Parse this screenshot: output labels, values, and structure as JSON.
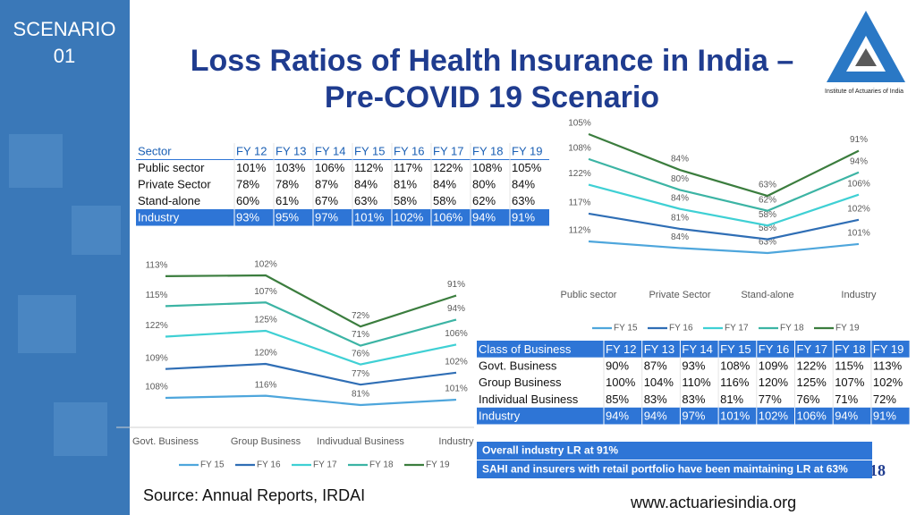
{
  "sidebar": {
    "line1": "SCENARIO",
    "line2": "01"
  },
  "header": {
    "title_line1": "Loss Ratios of Health Insurance in India –",
    "title_line2": "Pre-COVID 19 Scenario",
    "logo_text": "Institute of Actuaries of India"
  },
  "table1": {
    "header": [
      "Sector",
      "FY 12",
      "FY 13",
      "FY 14",
      "FY 15",
      "FY 16",
      "FY 17",
      "FY 18",
      "FY 19"
    ],
    "rows": [
      [
        "Public sector",
        "101%",
        "103%",
        "106%",
        "112%",
        "117%",
        "122%",
        "108%",
        "105%"
      ],
      [
        "Private Sector",
        "78%",
        "78%",
        "87%",
        "84%",
        "81%",
        "84%",
        "80%",
        "84%"
      ],
      [
        "Stand-alone",
        "60%",
        "61%",
        "67%",
        "63%",
        "58%",
        "58%",
        "62%",
        "63%"
      ],
      [
        "Industry",
        "93%",
        "95%",
        "97%",
        "101%",
        "102%",
        "106%",
        "94%",
        "91%"
      ]
    ]
  },
  "table2": {
    "header": [
      "Class of Business",
      "FY 12",
      "FY 13",
      "FY 14",
      "FY 15",
      "FY 16",
      "FY 17",
      "FY 18",
      "FY 19"
    ],
    "rows": [
      [
        "Govt. Business",
        "90%",
        "87%",
        "93%",
        "108%",
        "109%",
        "122%",
        "115%",
        "113%"
      ],
      [
        "Group Business",
        "100%",
        "104%",
        "110%",
        "116%",
        "120%",
        "125%",
        "107%",
        "102%"
      ],
      [
        "Individual Business",
        "85%",
        "83%",
        "83%",
        "81%",
        "77%",
        "76%",
        "71%",
        "72%"
      ],
      [
        "Industry",
        "94%",
        "94%",
        "97%",
        "101%",
        "102%",
        "106%",
        "94%",
        "91%"
      ]
    ]
  },
  "chart_data": [
    {
      "type": "line",
      "stacked": true,
      "categories": [
        "Public sector",
        "Private Sector",
        "Stand-alone",
        "Industry"
      ],
      "series": [
        {
          "name": "FY 15",
          "color": "#4ea6dc",
          "values": [
            112,
            84,
            63,
            101
          ],
          "value_labels": [
            "112%",
            "84%",
            "63%",
            "101%"
          ]
        },
        {
          "name": "FY 16",
          "color": "#2f6eb5",
          "values": [
            117,
            81,
            58,
            102
          ],
          "value_labels": [
            "117%",
            "81%",
            "58%",
            "102%"
          ]
        },
        {
          "name": "FY 17",
          "color": "#3fd0d4",
          "values": [
            122,
            84,
            58,
            106
          ],
          "value_labels": [
            "122%",
            "84%",
            "58%",
            "106%"
          ]
        },
        {
          "name": "FY 18",
          "color": "#3cb4a4",
          "values": [
            108,
            80,
            62,
            94
          ],
          "value_labels": [
            "108%",
            "80%",
            "62%",
            "94%"
          ]
        },
        {
          "name": "FY 19",
          "color": "#3b7d3e",
          "values": [
            105,
            84,
            63,
            91
          ],
          "value_labels": [
            "105%",
            "84%",
            "63%",
            "91%"
          ]
        }
      ]
    },
    {
      "type": "line",
      "stacked": true,
      "categories": [
        "Govt. Business",
        "Group Business",
        "Indivudual Business",
        "Industry"
      ],
      "series": [
        {
          "name": "FY 15",
          "color": "#4ea6dc",
          "values": [
            108,
            116,
            81,
            101
          ],
          "value_labels": [
            "108%",
            "116%",
            "81%",
            "101%"
          ]
        },
        {
          "name": "FY 16",
          "color": "#2f6eb5",
          "values": [
            109,
            120,
            77,
            102
          ],
          "value_labels": [
            "109%",
            "120%",
            "77%",
            "102%"
          ]
        },
        {
          "name": "FY 17",
          "color": "#3fd0d4",
          "values": [
            122,
            125,
            76,
            106
          ],
          "value_labels": [
            "122%",
            "125%",
            "76%",
            "106%"
          ]
        },
        {
          "name": "FY 18",
          "color": "#3cb4a4",
          "values": [
            115,
            107,
            71,
            94
          ],
          "value_labels": [
            "115%",
            "107%",
            "71%",
            "94%"
          ]
        },
        {
          "name": "FY 19",
          "color": "#3b7d3e",
          "values": [
            113,
            102,
            72,
            91
          ],
          "value_labels": [
            "113%",
            "102%",
            "72%",
            "91%"
          ]
        }
      ]
    }
  ],
  "callouts": [
    "Overall industry LR at 91%",
    "SAHI and insurers with retail portfolio have been maintaining LR at 63%"
  ],
  "page_number": "18",
  "source": "Source: Annual Reports, IRDAI",
  "website": "www.actuariesindia.org"
}
